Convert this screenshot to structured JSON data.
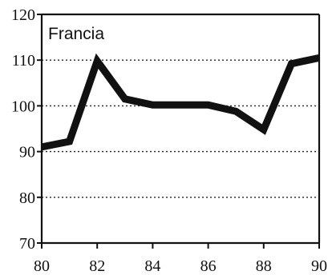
{
  "chart_data": {
    "type": "line",
    "label": "Francia",
    "x": [
      80,
      81,
      82,
      83,
      84,
      85,
      86,
      87,
      88,
      89,
      90
    ],
    "y": [
      91,
      92.2,
      109.8,
      101.5,
      100.2,
      100.2,
      100.2,
      98.8,
      94.8,
      109.2,
      110.5
    ],
    "xlim": [
      80,
      90
    ],
    "ylim": [
      70,
      120
    ],
    "xticks": [
      80,
      82,
      84,
      86,
      88,
      90
    ],
    "yticks": [
      70,
      80,
      90,
      100,
      110,
      120
    ],
    "xtick_labels": [
      "80",
      "82",
      "84",
      "86",
      "88",
      "90"
    ],
    "ytick_labels": [
      "70",
      "80",
      "90",
      "100",
      "110",
      "120"
    ],
    "grid": "y-dotted",
    "colors": {
      "line": "#111111",
      "axis": "#111111",
      "grid": "#222222",
      "background": "#ffffff"
    }
  }
}
